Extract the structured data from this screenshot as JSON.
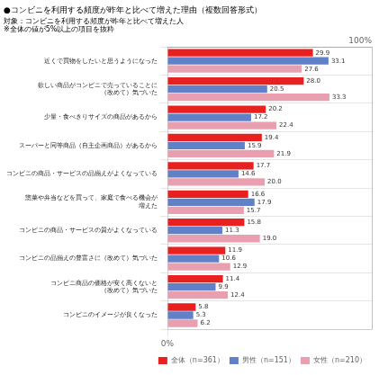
{
  "chart_data": {
    "type": "bar",
    "orientation": "horizontal",
    "title": "●コンビニを利用する頻度が昨年と比べて増えた理由（複数回答形式）",
    "subtitle": [
      "対象：コンビニを利用する頻度が昨年と比べて増えた人",
      "※全体の値が5%以上の項目を抜粋"
    ],
    "categories": [
      "近くで買物をしたいと思うようになった",
      "欲しい商品がコンビニで売っていることに\n（改めて）気づいた",
      "少量・食べきりサイズの商品があるから",
      "スーパーと同等商品（自主企画商品）があるから",
      "コンビニの商品・サービスの品揃えがよくなっている",
      "惣菜や弁当などを買って、家庭で食べる機会が\n増えた",
      "コンビニの商品・サービスの質がよくなっている",
      "コンビニの品揃えの豊富さに（改めて）気づいた",
      "コンビニ商品の価格が安く高くないと\n（改めて）気づいた",
      "コンビニのイメージが良くなった"
    ],
    "series": [
      {
        "name": "全体（n=361）",
        "color": "#e82020",
        "values": [
          29.9,
          28.0,
          20.2,
          19.4,
          17.7,
          16.6,
          15.8,
          11.9,
          11.4,
          5.8
        ],
        "value_labels": [
          "29.9",
          "28.0",
          "20.2",
          "19.4",
          "17.7",
          "16.6",
          "15.8",
          "11.9",
          "11.4",
          "5.8"
        ]
      },
      {
        "name": "男性（n=151）",
        "color": "#6080c8",
        "values": [
          33.1,
          20.5,
          17.2,
          15.9,
          14.6,
          17.9,
          11.3,
          10.6,
          9.9,
          5.3
        ],
        "value_labels": [
          "33.1",
          "20.5",
          "17.2",
          "15.9",
          "14.6",
          "17.9",
          "11.3",
          "10.6",
          "9.9",
          "5.3"
        ]
      },
      {
        "name": "女性（n=210）",
        "color": "#e8a0b0",
        "values": [
          27.6,
          33.3,
          22.4,
          21.9,
          20.0,
          15.7,
          19.0,
          12.9,
          12.4,
          6.2
        ],
        "value_labels": [
          "27.6",
          "33.3",
          "22.4",
          "21.9",
          "20.0",
          "15.7",
          "19.0",
          "12.9",
          "12.4",
          "6.2"
        ]
      }
    ],
    "xlim": [
      0,
      42
    ],
    "xticks": [
      {
        "value": 0,
        "label": "0%"
      }
    ],
    "grid": true,
    "legend": "lower right",
    "data_labels": true,
    "annotations": [
      {
        "text": "100%",
        "x": 42
      }
    ]
  }
}
